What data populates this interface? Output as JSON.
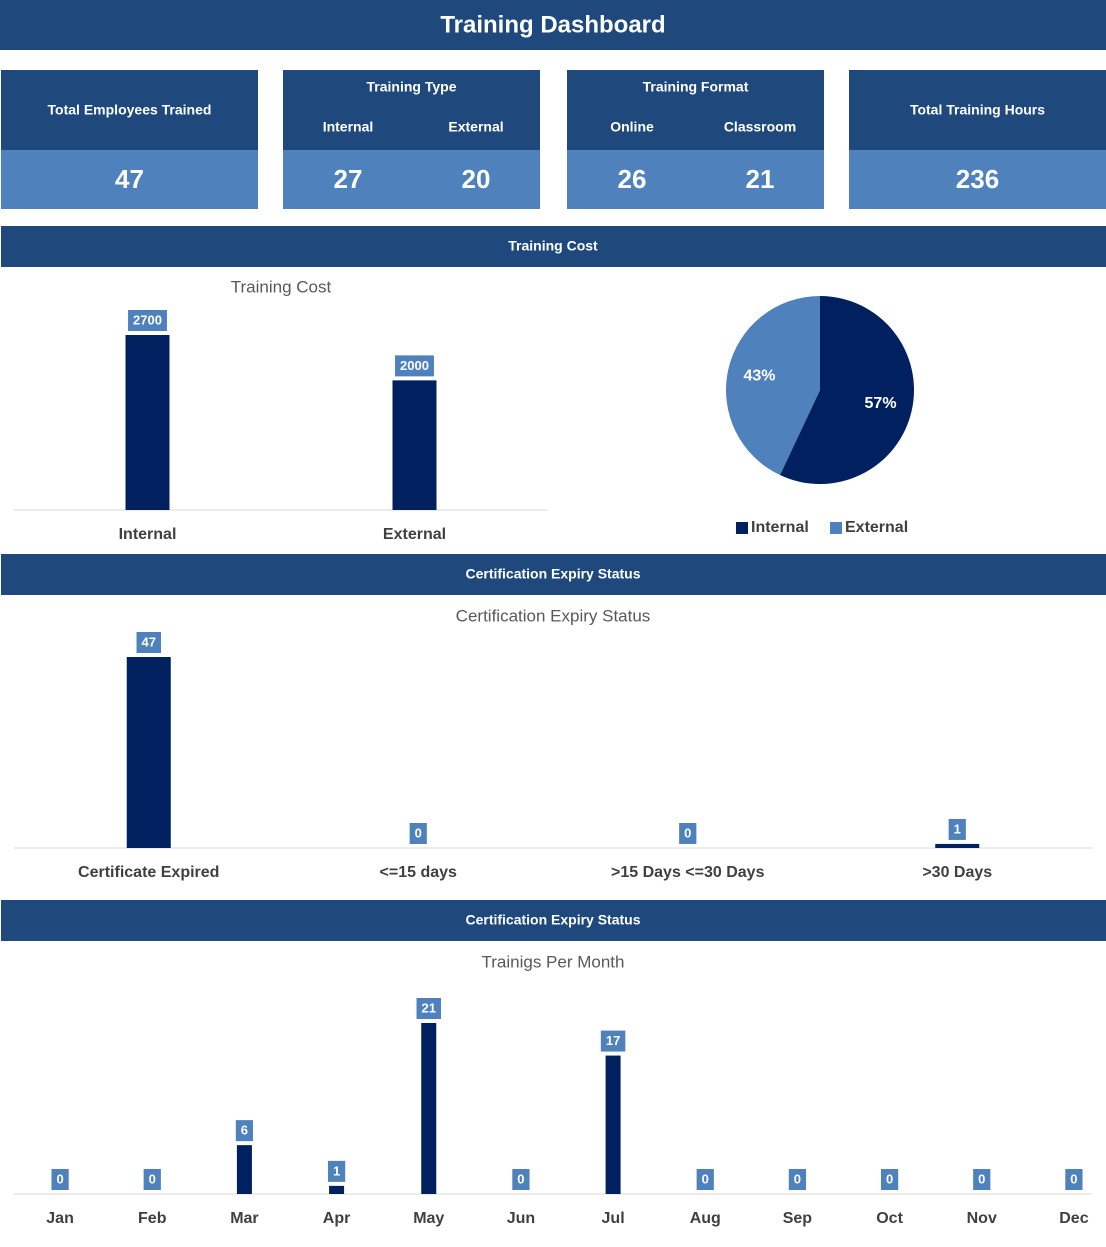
{
  "header": {
    "title": "Training Dashboard"
  },
  "kpis": [
    {
      "title": "Total Employees Trained",
      "items": [
        {
          "value": 47
        }
      ]
    },
    {
      "title": "Training Type",
      "items": [
        {
          "label": "Internal",
          "value": 27
        },
        {
          "label": "External",
          "value": 20
        }
      ]
    },
    {
      "title": "Training Format",
      "items": [
        {
          "label": "Online",
          "value": 26
        },
        {
          "label": "Classroom",
          "value": 21
        }
      ]
    },
    {
      "title": "Total Training Hours",
      "items": [
        {
          "value": 236
        }
      ]
    }
  ],
  "sections": [
    "Training Cost",
    "Certification Expiry Status",
    "Certification Expiry Status"
  ],
  "chart_data": [
    {
      "type": "bar",
      "title": "Training Cost",
      "categories": [
        "Internal",
        "External"
      ],
      "values": [
        2700,
        2000
      ],
      "color": "#002060",
      "label_color": "#4f81bd"
    },
    {
      "type": "pie",
      "categories": [
        "Internal",
        "External"
      ],
      "values": [
        57,
        43
      ],
      "value_labels": [
        "57%",
        "43%"
      ],
      "colors": [
        "#002060",
        "#4f81bd"
      ]
    },
    {
      "type": "bar",
      "title": "Certification Expiry Status",
      "categories": [
        "Certificate Expired",
        "<=15 days",
        ">15 Days <=30 Days",
        ">30 Days"
      ],
      "values": [
        47,
        0,
        0,
        1
      ],
      "color": "#002060",
      "label_color": "#4f81bd"
    },
    {
      "type": "bar",
      "title": "Trainigs Per Month",
      "categories": [
        "Jan",
        "Feb",
        "Mar",
        "Apr",
        "May",
        "Jun",
        "Jul",
        "Aug",
        "Sep",
        "Oct",
        "Nov",
        "Dec"
      ],
      "values": [
        0,
        0,
        6,
        1,
        21,
        0,
        17,
        0,
        0,
        0,
        0,
        0
      ],
      "color": "#002060",
      "label_color": "#4f81bd"
    }
  ]
}
